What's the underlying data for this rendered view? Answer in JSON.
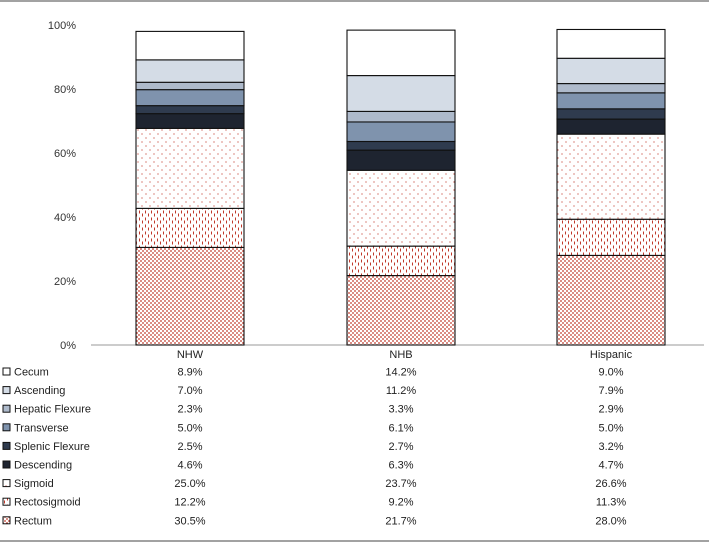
{
  "chart_data": {
    "type": "bar",
    "stacked": true,
    "categories": [
      "NHW",
      "NHB",
      "Hispanic"
    ],
    "ylim": [
      0,
      100
    ],
    "yticks": [
      "0%",
      "20%",
      "40%",
      "60%",
      "80%",
      "100%"
    ],
    "grid": false,
    "legend": "data-table-below",
    "series": [
      {
        "name": "Rectum",
        "values": [
          30.5,
          21.7,
          28.0
        ],
        "labels": [
          "30.5%",
          "21.7%",
          "28.0%"
        ],
        "color": "#c0392b",
        "pattern": "dense-red-dots"
      },
      {
        "name": "Rectosigmoid",
        "values": [
          12.2,
          9.2,
          11.3
        ],
        "labels": [
          "12.2%",
          "9.2%",
          "11.3%"
        ],
        "color": "#c0392b",
        "pattern": "red-dashes"
      },
      {
        "name": "Sigmoid",
        "values": [
          25.0,
          23.7,
          26.6
        ],
        "labels": [
          "25.0%",
          "23.7%",
          "26.6%"
        ],
        "color": "#c0392b",
        "pattern": "sparse-red-dots"
      },
      {
        "name": "Descending",
        "values": [
          4.6,
          6.3,
          4.7
        ],
        "labels": [
          "4.6%",
          "6.3%",
          "4.7%"
        ],
        "color": "#1e2430"
      },
      {
        "name": "Splenic Flexure",
        "values": [
          2.5,
          2.7,
          3.2
        ],
        "labels": [
          "2.5%",
          "2.7%",
          "3.2%"
        ],
        "color": "#2f3b4e"
      },
      {
        "name": "Transverse",
        "values": [
          5.0,
          6.1,
          5.0
        ],
        "labels": [
          "5.0%",
          "6.1%",
          "5.0%"
        ],
        "color": "#7f93ad"
      },
      {
        "name": "Hepatic Flexure",
        "values": [
          2.3,
          3.3,
          2.9
        ],
        "labels": [
          "2.3%",
          "3.3%",
          "2.9%"
        ],
        "color": "#aebacb"
      },
      {
        "name": "Ascending",
        "values": [
          7.0,
          11.2,
          7.9
        ],
        "labels": [
          "7.0%",
          "11.2%",
          "7.9%"
        ],
        "color": "#d4dce6"
      },
      {
        "name": "Cecum",
        "values": [
          8.9,
          14.2,
          9.0
        ],
        "labels": [
          "8.9%",
          "14.2%",
          "9.0%"
        ],
        "color": "#ffffff"
      }
    ],
    "table_order": [
      "Cecum",
      "Ascending",
      "Hepatic Flexure",
      "Transverse",
      "Splenic Flexure",
      "Descending",
      "Sigmoid",
      "Rectosigmoid",
      "Rectum"
    ]
  }
}
